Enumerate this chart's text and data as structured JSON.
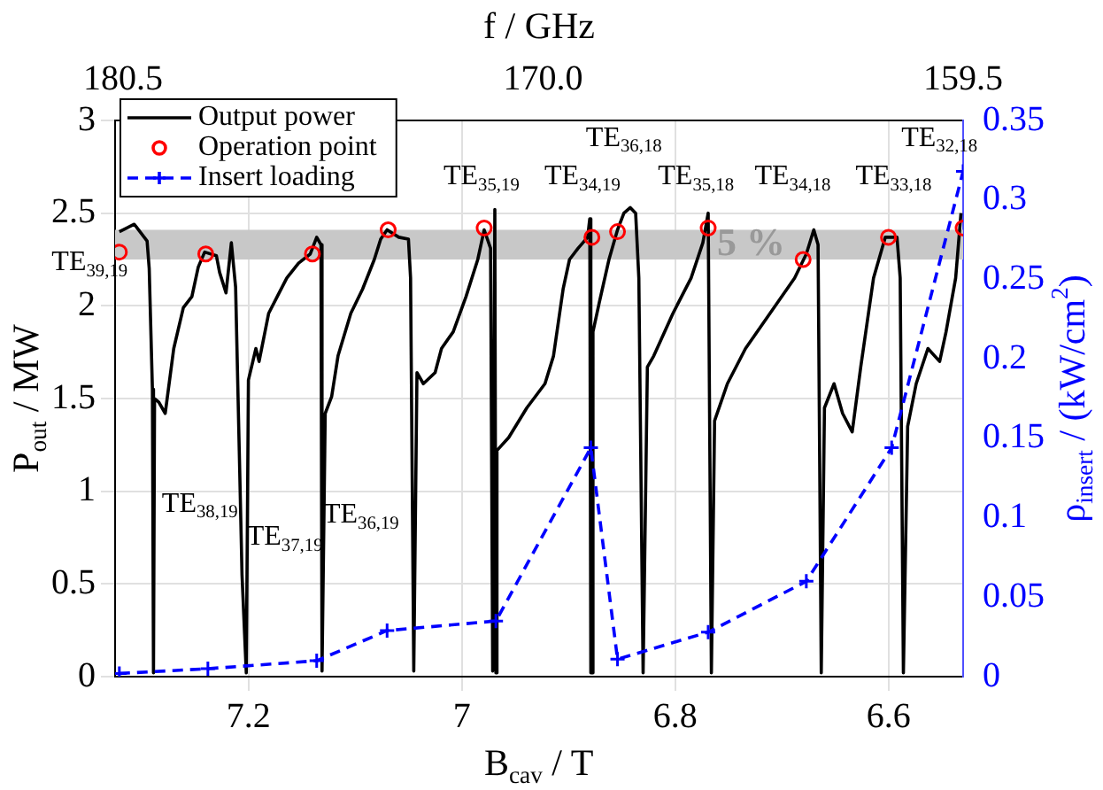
{
  "chart_data": {
    "type": "line",
    "xlabel": "B$_{cav}$ / T",
    "ylabel": "P$_{out}$ / MW",
    "y2label": "ρ$_{insert}$ / (kW/cm$^{2}$)",
    "x2label": "f / GHz",
    "xlim": [
      7.325,
      6.53
    ],
    "xticks": [
      7.2,
      7,
      6.8,
      6.6
    ],
    "x2lim": [
      180.7,
      159.5
    ],
    "x2ticks": [
      {
        "value": 180.5,
        "label": "180.5"
      },
      {
        "value": 170,
        "label": "170.0"
      },
      {
        "value": 159.5,
        "label": "159.5"
      }
    ],
    "ylim": [
      0,
      3
    ],
    "yticks": [
      0,
      0.5,
      1,
      1.5,
      2,
      2.5,
      3
    ],
    "y2lim": [
      0,
      0.35
    ],
    "y2ticks": [
      0,
      0.05,
      0.1,
      0.15,
      0.2,
      0.25,
      0.3,
      0.35
    ],
    "grid": true,
    "legend": "top left",
    "bands": [
      {
        "axis": "y",
        "from": 2.25,
        "to": 2.41,
        "label": "5 %",
        "color": "#c8c8c8"
      }
    ],
    "series": [
      {
        "name": "Output power",
        "color": "#000000",
        "marker": "none",
        "line_style": "solid",
        "x": [
          7.321,
          7.307,
          7.295,
          7.293,
          7.29,
          7.289,
          7.288,
          7.284,
          7.278,
          7.27,
          7.261,
          7.253,
          7.247,
          7.241,
          7.23,
          7.227,
          7.221,
          7.216,
          7.212,
          7.206,
          7.202,
          7.2,
          7.193,
          7.19,
          7.181,
          7.173,
          7.164,
          7.153,
          7.142,
          7.136,
          7.132,
          7.131,
          7.128,
          7.122,
          7.116,
          7.104,
          7.093,
          7.082,
          7.076,
          7.07,
          7.059,
          7.05,
          7.048,
          7.045,
          7.042,
          7.036,
          7.025,
          7.019,
          7.008,
          6.996,
          6.985,
          6.979,
          6.973,
          6.971,
          6.969,
          6.968,
          6.967,
          6.956,
          6.939,
          6.922,
          6.914,
          6.905,
          6.899,
          6.891,
          6.882,
          6.88,
          6.879,
          6.878,
          6.877,
          6.871,
          6.862,
          6.854,
          6.848,
          6.842,
          6.837,
          6.834,
          6.83,
          6.826,
          6.82,
          6.802,
          6.785,
          6.774,
          6.769,
          6.766,
          6.763,
          6.751,
          6.734,
          6.711,
          6.688,
          6.677,
          6.67,
          6.666,
          6.663,
          6.66,
          6.651,
          6.643,
          6.634,
          6.626,
          6.614,
          6.603,
          6.592,
          6.589,
          6.586,
          6.582,
          6.574,
          6.563,
          6.552,
          6.546,
          6.537,
          6.532
        ],
        "values": [
          2.4,
          2.44,
          2.35,
          2.2,
          1.55,
          0.02,
          1.5,
          1.48,
          1.42,
          1.77,
          1.99,
          2.05,
          2.21,
          2.29,
          2.27,
          2.18,
          2.07,
          2.34,
          2.1,
          0.55,
          0.02,
          1.6,
          1.77,
          1.7,
          1.96,
          2.05,
          2.15,
          2.23,
          2.28,
          2.37,
          2.33,
          0.03,
          1.42,
          1.51,
          1.73,
          1.96,
          2.09,
          2.25,
          2.36,
          2.41,
          2.37,
          2.36,
          2.15,
          0.03,
          1.64,
          1.58,
          1.64,
          1.77,
          1.86,
          2.05,
          2.25,
          2.41,
          2.31,
          0.03,
          2.52,
          0.02,
          1.22,
          1.29,
          1.45,
          1.58,
          1.73,
          2.09,
          2.25,
          2.31,
          2.37,
          2.47,
          0.02,
          0.02,
          1.86,
          2.02,
          2.25,
          2.41,
          2.5,
          2.53,
          2.5,
          2.15,
          0.02,
          1.67,
          1.73,
          1.96,
          2.15,
          2.34,
          2.5,
          0.02,
          1.38,
          1.58,
          1.77,
          1.96,
          2.15,
          2.28,
          2.41,
          2.33,
          0.02,
          1.45,
          1.58,
          1.42,
          1.32,
          1.67,
          2.15,
          2.37,
          2.37,
          2.15,
          0.02,
          1.35,
          1.58,
          1.77,
          1.7,
          1.86,
          2.15,
          2.5
        ]
      },
      {
        "name": "Operation point",
        "type": "scatter",
        "color": "#ff0000",
        "marker": "circle",
        "x": [
          7.321,
          7.24,
          7.14,
          7.069,
          6.979,
          6.878,
          6.854,
          6.769,
          6.68,
          6.6,
          6.53
        ],
        "values": [
          2.29,
          2.28,
          2.28,
          2.41,
          2.42,
          2.37,
          2.4,
          2.42,
          2.25,
          2.37,
          2.42
        ]
      },
      {
        "name": "Insert loading",
        "type": "line",
        "axis": "y2",
        "color": "#0000ff",
        "marker": "cross",
        "line_style": "dashed",
        "x": [
          7.321,
          7.238,
          7.136,
          7.07,
          6.968,
          6.879,
          6.854,
          6.769,
          6.677,
          6.597,
          6.53
        ],
        "values": [
          0.002,
          0.005,
          0.01,
          0.029,
          0.035,
          0.144,
          0.011,
          0.028,
          0.06,
          0.144,
          0.318
        ]
      }
    ],
    "annotations": [
      "TE$_{39,19}$",
      "TE$_{38,19}$",
      "TE$_{37,19}$",
      "TE$_{36,19}$",
      "TE$_{35,19}$",
      "TE$_{34,19}$",
      "TE$_{36,18}$",
      "TE$_{35,18}$",
      "TE$_{34,18}$",
      "TE$_{33,18}$",
      "TE$_{32,18}$"
    ]
  }
}
